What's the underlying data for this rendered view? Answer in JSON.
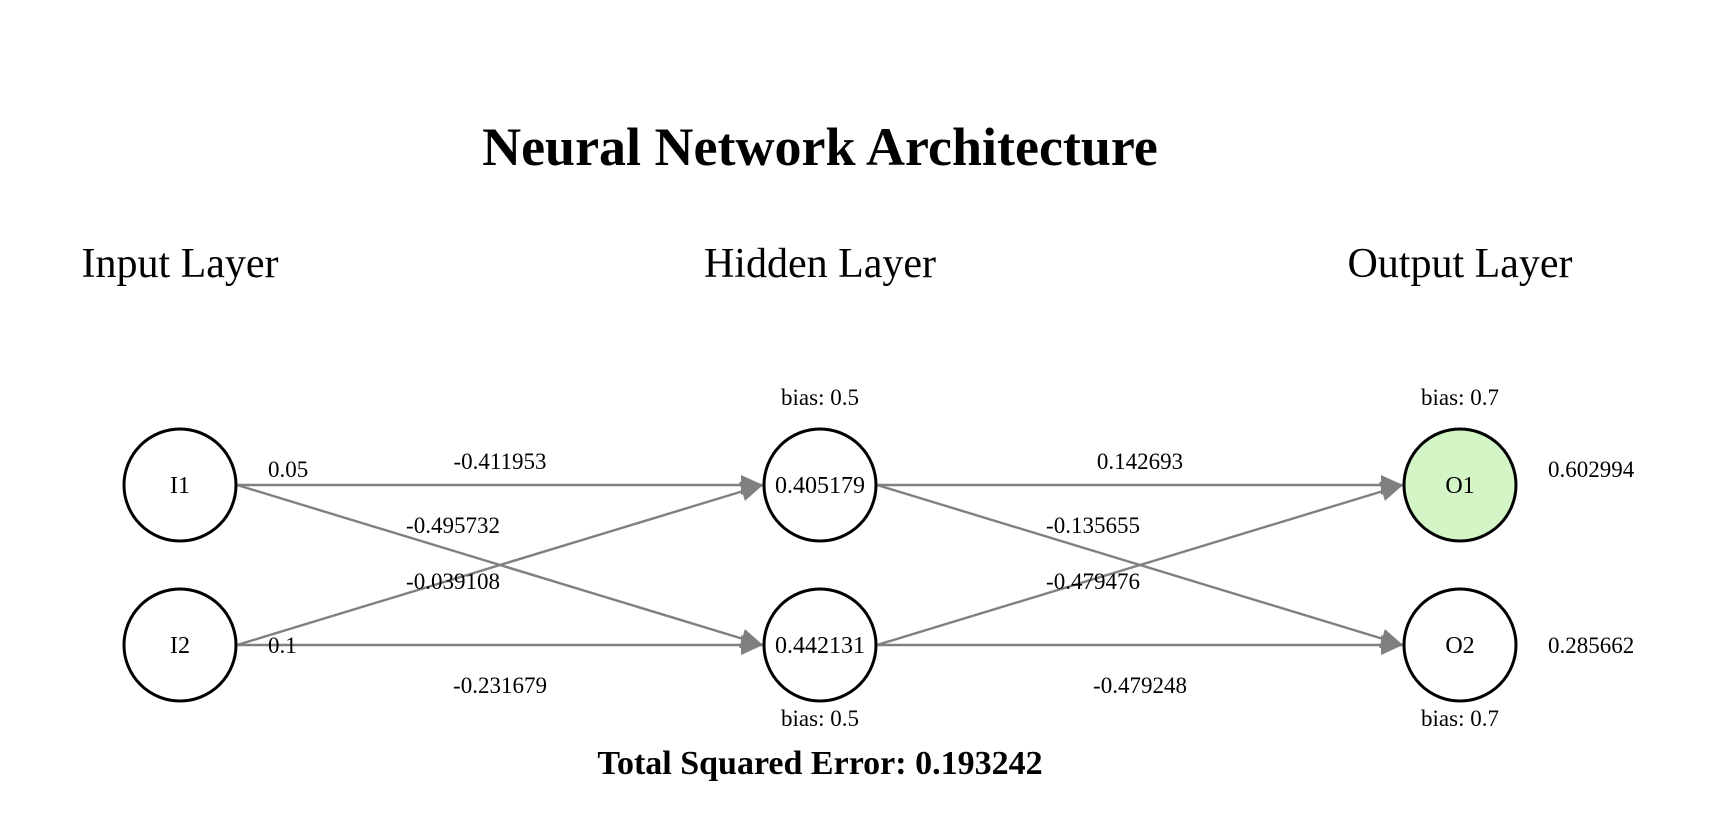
{
  "diagram": {
    "title": "Neural Network Architecture",
    "layer_labels": {
      "input": "Input Layer",
      "hidden": "Hidden Layer",
      "output": "Output Layer"
    },
    "input_nodes": [
      {
        "label": "I1",
        "value": "0.05"
      },
      {
        "label": "I2",
        "value": "0.1"
      }
    ],
    "hidden_nodes": [
      {
        "label": "0.405179",
        "bias": "bias: 0.5"
      },
      {
        "label": "0.442131",
        "bias": "bias: 0.5"
      }
    ],
    "output_nodes": [
      {
        "label": "O1",
        "bias": "bias: 0.7",
        "value": "0.602994",
        "highlight": true
      },
      {
        "label": "O2",
        "bias": "bias: 0.7",
        "value": "0.285662",
        "highlight": false
      }
    ],
    "weights_input_hidden": {
      "i1_h1": "-0.411953",
      "i1_h2": "-0.495732",
      "i2_h1": "-0.039108",
      "i2_h2": "-0.231679"
    },
    "weights_hidden_output": {
      "h1_o1": "0.142693",
      "h1_o2": "-0.135655",
      "h2_o1": "-0.479476",
      "h2_o2": "-0.479248"
    },
    "total_error": "Total Squared Error: 0.193242",
    "colors": {
      "edge": "#808080",
      "highlight_fill": "#d4f5c6",
      "node_stroke": "#000000"
    }
  }
}
